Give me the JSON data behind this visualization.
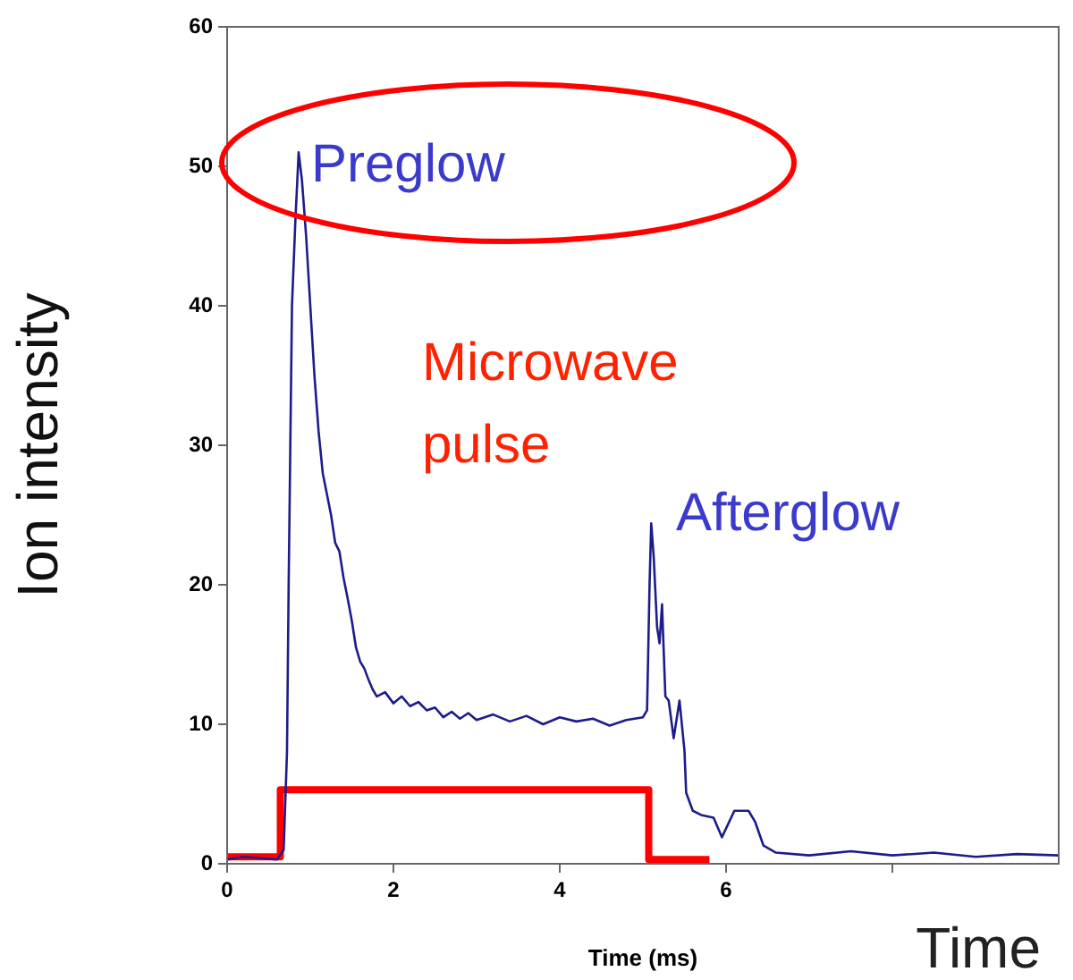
{
  "chart_data": {
    "type": "line",
    "xlabel": "Time (ms)",
    "ylabel": "Ion intensity",
    "xlim": [
      0,
      10
    ],
    "xticks": [
      0,
      2,
      4,
      6,
      {
        "value": 8,
        "label": null
      }
    ],
    "ylim": [
      0,
      60
    ],
    "yticks": [
      0,
      10,
      20,
      30,
      40,
      50,
      60
    ],
    "grid": false,
    "legend": false,
    "marker": "none",
    "line_style": "solid",
    "series": [
      {
        "color": "#1c1c8a",
        "x": [
          0,
          0.2,
          0.4,
          0.6,
          0.68,
          0.72,
          0.74,
          0.78,
          0.82,
          0.86,
          0.9,
          0.95,
          1.0,
          1.05,
          1.1,
          1.15,
          1.2,
          1.25,
          1.3,
          1.35,
          1.4,
          1.45,
          1.5,
          1.55,
          1.6,
          1.65,
          1.7,
          1.75,
          1.8,
          1.9,
          2.0,
          2.1,
          2.2,
          2.3,
          2.4,
          2.5,
          2.6,
          2.7,
          2.8,
          2.9,
          3.0,
          3.2,
          3.4,
          3.6,
          3.8,
          4.0,
          4.2,
          4.4,
          4.6,
          4.8,
          5.0,
          5.05,
          5.08,
          5.1,
          5.13,
          5.17,
          5.2,
          5.23,
          5.27,
          5.31,
          5.37,
          5.44,
          5.5,
          5.52,
          5.6,
          5.7,
          5.85,
          5.95,
          6.1,
          6.27,
          6.35,
          6.45,
          6.6,
          7,
          7.5,
          8,
          8.5,
          9,
          9.5,
          10
        ],
        "values": [
          0.3,
          0.5,
          0.4,
          0.3,
          1,
          8,
          20,
          40,
          46,
          51,
          49,
          45,
          40,
          35,
          31,
          28,
          26.5,
          25,
          23,
          22.4,
          20.5,
          19,
          17.4,
          15.5,
          14.5,
          14,
          13.2,
          12.5,
          12,
          12.3,
          11.5,
          12,
          11.3,
          11.6,
          11,
          11.2,
          10.5,
          10.9,
          10.4,
          10.8,
          10.3,
          10.7,
          10.2,
          10.6,
          10,
          10.5,
          10.2,
          10.4,
          9.9,
          10.3,
          10.5,
          11,
          20,
          24.4,
          22,
          17,
          15.8,
          18.6,
          12,
          11.7,
          9,
          11.7,
          8.1,
          5.1,
          3.8,
          3.5,
          3.3,
          1.9,
          3.8,
          3.8,
          3,
          1.3,
          0.8,
          0.6,
          0.9,
          0.6,
          0.8,
          0.5,
          0.7,
          0.6
        ]
      },
      {
        "color": "#ff0000",
        "x": [
          0,
          0.64,
          0.64,
          5.07,
          5.07,
          5.8
        ],
        "values": [
          0.5,
          0.5,
          5.3,
          5.3,
          0.3,
          0.3
        ]
      }
    ],
    "annotations": [
      "Preglow",
      "Afterglow",
      "Microwave pulse",
      "Time"
    ]
  }
}
